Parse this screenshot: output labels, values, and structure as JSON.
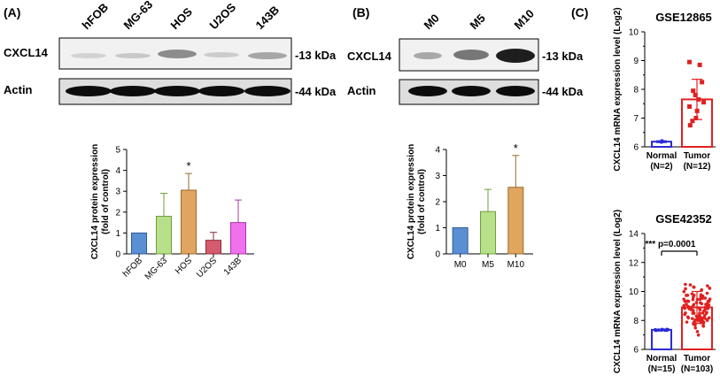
{
  "panels": {
    "A": {
      "label": "(A)",
      "lanes": [
        "hFOB",
        "MG-63",
        "HOS",
        "U2OS",
        "143B"
      ],
      "blots": [
        {
          "name": "CXCL14",
          "kda": "-13 kDa"
        },
        {
          "name": "Actin",
          "kda": "-44 kDa"
        }
      ]
    },
    "B": {
      "label": "(B)",
      "lanes": [
        "M0",
        "M5",
        "M10"
      ],
      "blots": [
        {
          "name": "CXCL14",
          "kda": "-13 kDa"
        },
        {
          "name": "Actin",
          "kda": "-44 kDa"
        }
      ]
    },
    "C": {
      "label": "(C)"
    }
  },
  "chart_data": [
    {
      "type": "bar",
      "panel": "A",
      "categories": [
        "hFOB",
        "MG-63",
        "HOS",
        "U2OS",
        "143B"
      ],
      "values": [
        1.0,
        1.8,
        3.05,
        0.65,
        1.5
      ],
      "errors": [
        0,
        1.1,
        0.8,
        0.38,
        1.08
      ],
      "colors": [
        "#5b8fd4",
        "#b7e08a",
        "#e0a55f",
        "#d55c6e",
        "#f070ee"
      ],
      "edge_colors": [
        "#2e5a9a",
        "#6e9e3a",
        "#9a6a2a",
        "#8a2a3a",
        "#a83aa8"
      ],
      "significance": [
        {
          "category": "HOS",
          "label": "*"
        }
      ],
      "ylabel": "CXCL14 protein expression",
      "ylabel2": "(fold of control)",
      "ylim": [
        0,
        5
      ],
      "yticks": [
        "0",
        "1",
        "2",
        "3",
        "4",
        "5"
      ]
    },
    {
      "type": "bar",
      "panel": "B",
      "categories": [
        "M0",
        "M5",
        "M10"
      ],
      "values": [
        1.0,
        1.62,
        2.55
      ],
      "errors": [
        0,
        0.85,
        1.22
      ],
      "colors": [
        "#5b8fd4",
        "#b7e08a",
        "#e0a55f"
      ],
      "edge_colors": [
        "#2e5a9a",
        "#6e9e3a",
        "#9a6a2a"
      ],
      "significance": [
        {
          "category": "M10",
          "label": "*"
        }
      ],
      "ylabel": "CXCL14 protein expression",
      "ylabel2": "(fold of control)",
      "ylim": [
        0,
        4
      ],
      "yticks": [
        "0",
        "1",
        "2",
        "3",
        "4"
      ]
    },
    {
      "type": "bar",
      "panel": "C-top",
      "title": "GSE12865",
      "categories": [
        "Normal",
        "Tumor"
      ],
      "category_counts": [
        "(N=2)",
        "(N=12)"
      ],
      "values": [
        6.18,
        7.65
      ],
      "errors": [
        0.03,
        0.7
      ],
      "colors": [
        "#2b2bd6",
        "#e02020"
      ],
      "points": {
        "Normal": [
          6.17,
          6.2
        ],
        "Tumor": [
          6.75,
          6.9,
          7.0,
          7.25,
          7.4,
          7.55,
          7.65,
          7.8,
          7.95,
          8.25,
          8.85,
          8.95
        ]
      },
      "ylabel": "CXCL14 mRNA expression level (Log2)",
      "ylim": [
        6,
        10
      ],
      "yticks": [
        "6",
        "7",
        "8",
        "9",
        "10"
      ]
    },
    {
      "type": "bar",
      "panel": "C-bottom",
      "title": "GSE42352",
      "categories": [
        "Normal",
        "Tumor"
      ],
      "category_counts": [
        "(N=15)",
        "(N=103)"
      ],
      "values": [
        7.35,
        8.9
      ],
      "errors": [
        0.04,
        1.1
      ],
      "colors": [
        "#2b2bd6",
        "#e02020"
      ],
      "significance_label": "*** p=0.0001",
      "ylabel": "CXCL14 mRNA expression level (Log2)",
      "ylim": [
        6,
        14
      ],
      "yticks": [
        "6",
        "8",
        "10",
        "12",
        "14"
      ]
    }
  ]
}
